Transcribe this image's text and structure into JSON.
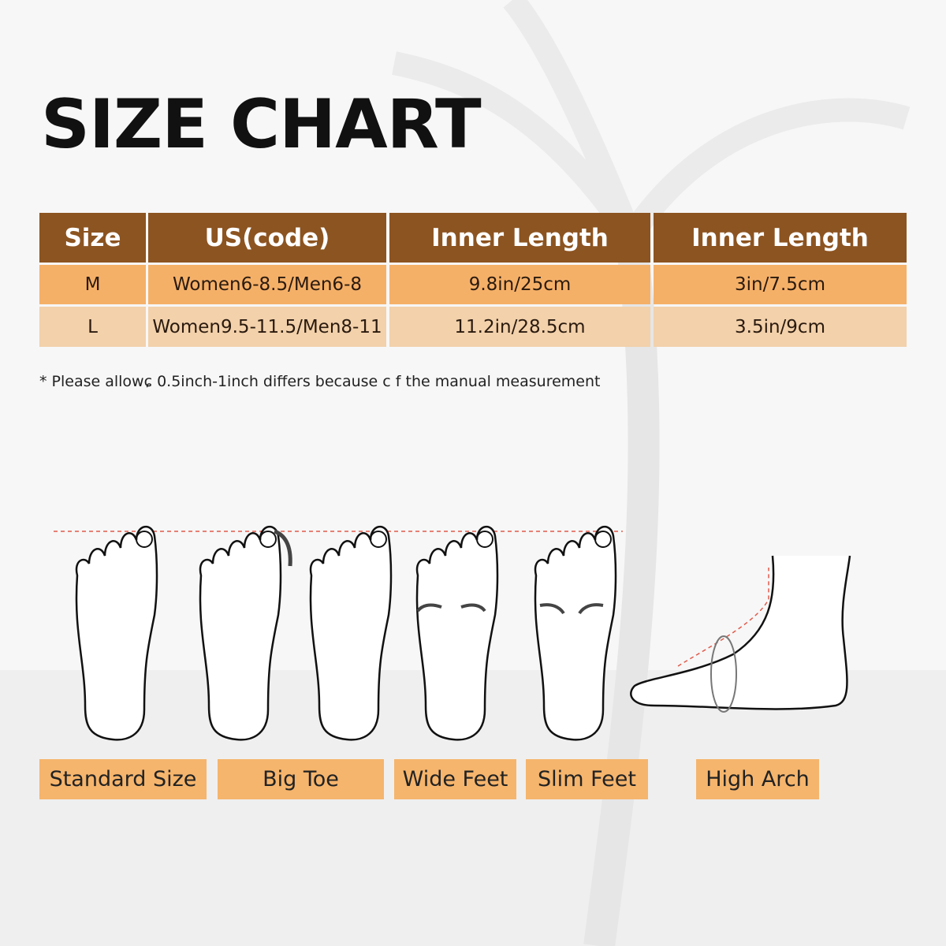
{
  "title": "SIZE CHART",
  "table": {
    "headers": [
      "Size",
      "US(code)",
      "Inner Length",
      "Inner Length"
    ],
    "rows": [
      [
        "M",
        "Women6-8.5/Men6-8",
        "9.8in/25cm",
        "3in/7.5cm"
      ],
      [
        "L",
        "Women9.5-11.5/Men8-11",
        "11.2in/28.5cm",
        "3.5in/9cm"
      ]
    ]
  },
  "note": "* Please allowɕ 0.5inch-1inch differs because c f the manual measurement",
  "foot_types": [
    "Standard Size",
    "Big Toe",
    "Wide Feet",
    "Slim Feet",
    "High Arch"
  ],
  "colors": {
    "header": "#8c5421",
    "row_m": "#f5b068",
    "row_l": "#f2d1ab",
    "label": "#f5b56d",
    "guide_line": "#e05a4a"
  }
}
